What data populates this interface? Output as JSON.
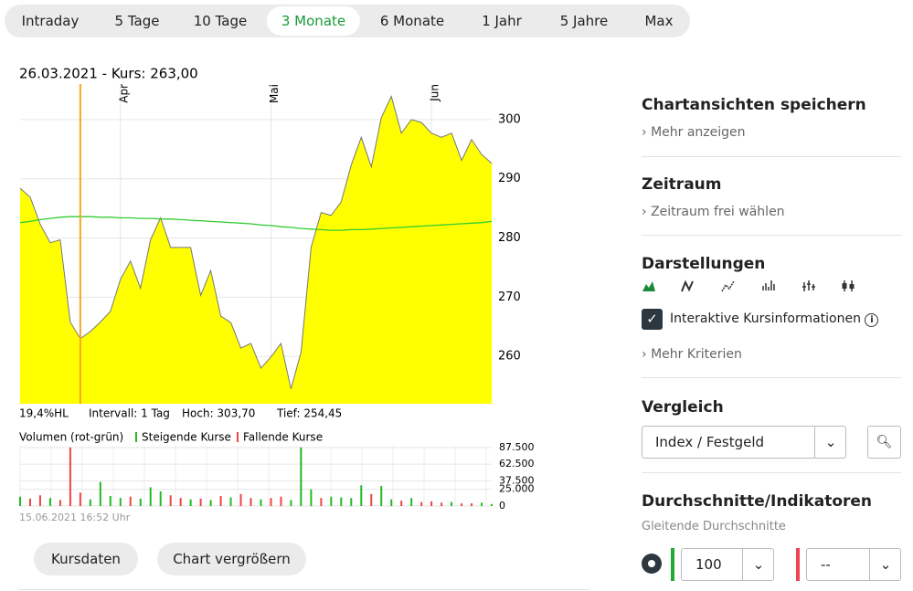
{
  "tabs": [
    "Intraday",
    "5 Tage",
    "10 Tage",
    "3 Monate",
    "6 Monate",
    "1 Jahr",
    "5 Jahre",
    "Max"
  ],
  "active_tab": 3,
  "chart_data": [
    {
      "type": "area",
      "title": "26.03.2021  -  Kurs: 263,00",
      "categories": [
        null,
        null,
        null,
        null,
        null,
        null,
        null,
        null,
        null,
        null,
        "Apr",
        null,
        null,
        null,
        null,
        null,
        null,
        null,
        null,
        null,
        null,
        null,
        null,
        null,
        null,
        "Mai",
        null,
        null,
        null,
        null,
        null,
        null,
        null,
        null,
        null,
        null,
        null,
        null,
        null,
        null,
        null,
        "Jun",
        null,
        null,
        null,
        null,
        null,
        null
      ],
      "series": [
        {
          "color": "#ffff00",
          "values": [
            288.4,
            286.9,
            282.3,
            279.2,
            279.7,
            265.8,
            263.0,
            264.2,
            265.8,
            267.6,
            273.0,
            276.1,
            271.5,
            279.7,
            283.4,
            278.4,
            278.4,
            278.4,
            270.3,
            274.5,
            266.8,
            265.7,
            261.4,
            262.2,
            258.0,
            259.9,
            262.2,
            254.5,
            260.7,
            278.4,
            284.3,
            283.8,
            286.1,
            292.3,
            297.0,
            292.0,
            300.3,
            303.9,
            297.7,
            300.0,
            299.5,
            297.7,
            297.0,
            297.7,
            293.1,
            296.6,
            294.1,
            292.6
          ]
        },
        {
          "color": "#33cc33",
          "values": [
            282.6,
            282.8,
            283.1,
            283.3,
            283.5,
            283.6,
            283.6,
            283.6,
            283.5,
            283.5,
            283.4,
            283.4,
            283.3,
            283.3,
            283.2,
            283.2,
            283.1,
            283.0,
            282.9,
            282.8,
            282.7,
            282.6,
            282.5,
            282.4,
            282.2,
            282.1,
            281.9,
            281.8,
            281.6,
            281.5,
            281.4,
            281.3,
            281.3,
            281.4,
            281.4,
            281.5,
            281.6,
            281.7,
            281.8,
            281.9,
            282.0,
            282.1,
            282.2,
            282.3,
            282.4,
            282.5,
            282.6,
            282.8
          ]
        }
      ],
      "ylim": [
        252,
        306
      ],
      "yticks": [
        260,
        270,
        280,
        290,
        300
      ],
      "grid": true,
      "highlight_index": 6,
      "stats": [
        "19,4%HL",
        "Intervall: 1 Tag",
        "Hoch: 303,70",
        "Tief: 254,45"
      ]
    },
    {
      "type": "bar",
      "title": "Volumen (rot-grün)",
      "series": [
        {
          "name": "Steigende Kurse",
          "color": "#22bb22",
          "values": [
            14000,
            null,
            null,
            12000,
            null,
            null,
            null,
            10000,
            36000,
            15000,
            12000,
            null,
            11000,
            28000,
            22000,
            null,
            null,
            10000,
            null,
            9000,
            null,
            13000,
            null,
            null,
            10000,
            null,
            null,
            9000,
            87500,
            25000,
            null,
            14000,
            13000,
            12000,
            31000,
            null,
            30000,
            10000,
            null,
            12000,
            null,
            null,
            null,
            6000,
            null,
            null,
            5000,
            3000
          ]
        },
        {
          "name": "Fallende Kurse",
          "color": "#ee4444",
          "values": [
            null,
            11000,
            16000,
            null,
            9000,
            87500,
            20000,
            null,
            null,
            null,
            null,
            14000,
            null,
            null,
            null,
            16000,
            12000,
            null,
            11000,
            null,
            15000,
            null,
            18000,
            12000,
            null,
            12000,
            14000,
            null,
            null,
            null,
            12000,
            null,
            null,
            null,
            null,
            18000,
            null,
            null,
            8000,
            null,
            6000,
            7000,
            5000,
            null,
            4000,
            4000,
            null,
            null
          ]
        }
      ],
      "ylim": [
        0,
        90000
      ],
      "yticks": [
        0,
        {
          "value": 25000,
          "label": "25.000"
        },
        {
          "value": 37500,
          "label": "37.500"
        },
        {
          "value": 62500,
          "label": "62.500"
        },
        {
          "value": 87500,
          "label": "87.500"
        }
      ]
    }
  ],
  "timestamp": "15.06.2021 16:52 Uhr",
  "buttons": [
    "Kursdaten",
    "Chart vergrößern"
  ],
  "sidebar": {
    "save_views": {
      "title": "Chartansichten speichern",
      "link": "Mehr anzeigen"
    },
    "period": {
      "title": "Zeitraum",
      "link": "Zeitraum frei wählen"
    },
    "display": {
      "title": "Darstellungen",
      "checkbox": "Interaktive Kursinformationen",
      "link": "Mehr Kriterien"
    },
    "compare": {
      "title": "Vergleich",
      "select": "Index / Festgeld"
    },
    "indicators": {
      "title": "Durchschnitte/Indikatoren",
      "subtitle": "Gleitende Durchschnitte",
      "select1": "100",
      "select2": "--"
    }
  }
}
